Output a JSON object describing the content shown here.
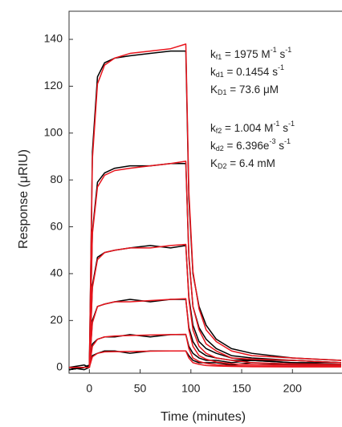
{
  "chart_data": {
    "type": "line",
    "xlabel": "Time (minutes)",
    "ylabel": "Response (μRIU)",
    "x": [
      -20,
      -5,
      0,
      3,
      8,
      15,
      25,
      40,
      60,
      80,
      95,
      98,
      102,
      108,
      115,
      125,
      140,
      160,
      200,
      248
    ],
    "series": [
      {
        "color": "#000000",
        "values": [
          -1,
          0,
          0,
          92,
          124,
          130,
          132,
          133,
          134,
          135,
          135,
          72,
          40,
          26,
          18,
          12,
          8,
          6,
          4,
          3
        ]
      },
      {
        "color": "#000000",
        "values": [
          -1,
          0,
          1,
          58,
          79,
          83,
          85,
          86,
          86,
          87,
          87,
          47,
          26,
          17,
          12,
          8,
          5,
          4,
          3,
          2
        ]
      },
      {
        "color": "#000000",
        "values": [
          0,
          1,
          0,
          35,
          47,
          49,
          50,
          51,
          52,
          51,
          52,
          30,
          18,
          11,
          8,
          6,
          4,
          3,
          3,
          2
        ]
      },
      {
        "color": "#000000",
        "values": [
          -1,
          0,
          0,
          20,
          26,
          27,
          28,
          29,
          28,
          29,
          29,
          17,
          11,
          7,
          5,
          4,
          3,
          3,
          2,
          2
        ]
      },
      {
        "color": "#000000",
        "values": [
          0,
          -1,
          0,
          10,
          12,
          13,
          13,
          14,
          13,
          14,
          14,
          9,
          6,
          4,
          3,
          3,
          2,
          3,
          2,
          1
        ]
      },
      {
        "color": "#000000",
        "values": [
          -1,
          0,
          1,
          5,
          6,
          7,
          7,
          6,
          7,
          7,
          7,
          5,
          3,
          2,
          2,
          2,
          1,
          2,
          1,
          1
        ]
      },
      {
        "color": "#e8141c",
        "values": [
          0,
          0,
          0,
          89,
          121,
          129,
          132,
          134,
          135,
          136,
          138,
          75,
          41,
          25,
          16,
          11,
          7,
          5,
          4,
          3
        ]
      },
      {
        "color": "#e8141c",
        "values": [
          0,
          0,
          0,
          57,
          77,
          82,
          84,
          85,
          86,
          87,
          88,
          48,
          26,
          16,
          10,
          7,
          4,
          3.5,
          3,
          2
        ]
      },
      {
        "color": "#e8141c",
        "values": [
          0,
          0,
          0,
          34,
          46,
          49,
          50,
          51,
          51,
          52,
          52.5,
          29,
          16,
          9,
          6,
          4,
          3,
          2,
          1.5,
          1.3
        ]
      },
      {
        "color": "#e8141c",
        "values": [
          0,
          0,
          0,
          19,
          26,
          27,
          28,
          28,
          28.5,
          29,
          29.3,
          16,
          9,
          5,
          3.5,
          2.3,
          1.5,
          1.2,
          0.9,
          0.7
        ]
      },
      {
        "color": "#e8141c",
        "values": [
          0,
          0,
          0,
          9,
          12,
          13,
          13.4,
          13.6,
          13.8,
          14,
          14.1,
          8,
          4,
          2.5,
          1.7,
          1.1,
          0.7,
          0.6,
          0.4,
          0.4
        ]
      },
      {
        "color": "#e8141c",
        "values": [
          0,
          0,
          0,
          4.5,
          6,
          6.6,
          6.7,
          6.8,
          6.9,
          7,
          7,
          4,
          2,
          1.3,
          0.8,
          0.6,
          0.4,
          0.3,
          0.2,
          0.2
        ]
      }
    ],
    "xlim": [
      -20,
      248
    ],
    "ylim": [
      -2.5,
      152
    ],
    "xticks": [
      0,
      50,
      100,
      150,
      200
    ],
    "yticks": [
      0,
      20,
      40,
      60,
      80,
      100,
      120,
      140
    ],
    "annotations": [
      {
        "parts": [
          {
            "text": "k"
          },
          {
            "sub": "f1"
          },
          {
            "text": " = 1975 M"
          },
          {
            "sup": "-1"
          },
          {
            "text": " s"
          },
          {
            "sup": "-1"
          }
        ]
      },
      {
        "parts": [
          {
            "text": "k"
          },
          {
            "sub": "d1"
          },
          {
            "text": " = 0.1454 s"
          },
          {
            "sup": "-1"
          }
        ]
      },
      {
        "parts": [
          {
            "text": "K"
          },
          {
            "sub": "D1"
          },
          {
            "text": " = 73.6 μM"
          }
        ]
      },
      {
        "parts": [
          {
            "text": "k"
          },
          {
            "sub": "f2"
          },
          {
            "text": " = 1.004 M"
          },
          {
            "sup": "-1"
          },
          {
            "text": " s"
          },
          {
            "sup": "-1"
          }
        ]
      },
      {
        "parts": [
          {
            "text": "k"
          },
          {
            "sub": "d2"
          },
          {
            "text": " = 6.396e"
          },
          {
            "sup": "-3"
          },
          {
            "text": " s"
          },
          {
            "sup": "-1"
          }
        ]
      },
      {
        "parts": [
          {
            "text": "K"
          },
          {
            "sub": "D2"
          },
          {
            "text": " = 6.4 mM"
          }
        ]
      }
    ]
  }
}
